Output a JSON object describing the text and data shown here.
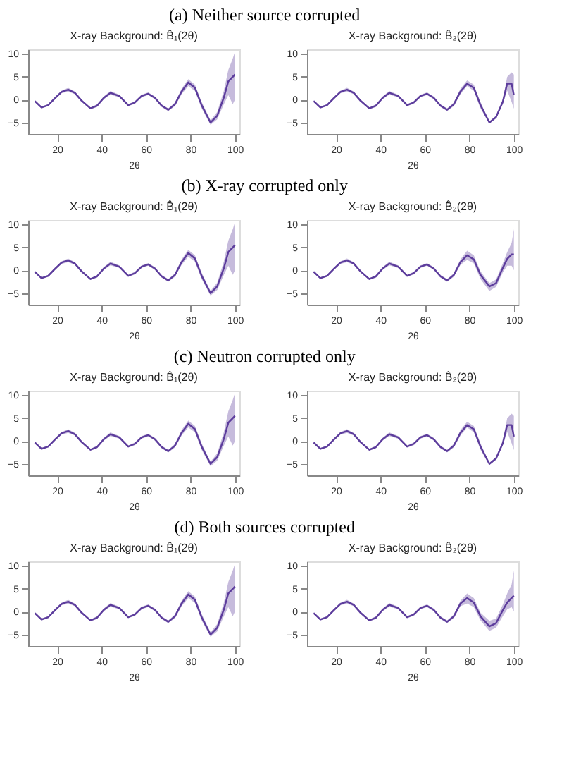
{
  "chart_data": [
    {
      "type": "line",
      "annotations": [
        "(a) Neither source corrupted"
      ],
      "title": "X-ray Background: B̂₁(2θ)",
      "xlabel": "2θ",
      "xlim": [
        7,
        102
      ],
      "xticks": [
        20,
        40,
        60,
        80,
        100
      ],
      "ylim": [
        -7.5,
        11
      ],
      "yticks": [
        -5,
        0,
        5,
        10
      ],
      "grid": false,
      "x": [
        10,
        13,
        16,
        19,
        22,
        25,
        28,
        31,
        35,
        38,
        41,
        44,
        48,
        52,
        55,
        58,
        61,
        64,
        67,
        70,
        73,
        76,
        79,
        82,
        85,
        89,
        92,
        95,
        97,
        99,
        100
      ],
      "series": [
        {
          "color": "#5c3c9c",
          "values": [
            -0.3,
            -1.7,
            -1.2,
            0.3,
            1.7,
            2.2,
            1.5,
            -0.2,
            -1.9,
            -1.3,
            0.4,
            1.5,
            0.8,
            -1.2,
            -0.6,
            0.8,
            1.3,
            0.4,
            -1.3,
            -2.2,
            -1.0,
            1.8,
            3.8,
            2.6,
            -1.2,
            -5.0,
            -3.5,
            0.5,
            4.0,
            5.0,
            5.5
          ],
          "lower": [
            -0.5,
            -1.9,
            -1.4,
            0.0,
            1.4,
            1.8,
            1.2,
            -0.5,
            -2.1,
            -1.6,
            0.1,
            1.1,
            0.5,
            -1.4,
            -0.9,
            0.5,
            1.0,
            0.1,
            -1.6,
            -2.5,
            -1.4,
            1.2,
            3.0,
            1.9,
            -1.9,
            -5.5,
            -4.3,
            -1.0,
            1.0,
            -1.0,
            0.0
          ],
          "upper": [
            -0.1,
            -1.5,
            -1.0,
            0.6,
            2.0,
            2.6,
            1.8,
            0.1,
            -1.7,
            -1.0,
            0.7,
            1.9,
            1.1,
            -1.0,
            -0.3,
            1.1,
            1.6,
            0.7,
            -1.0,
            -1.9,
            -0.6,
            2.4,
            4.5,
            3.3,
            -0.5,
            -4.5,
            -2.7,
            2.0,
            6.5,
            9.0,
            10.5
          ]
        }
      ]
    },
    {
      "type": "line",
      "title": "X-ray Background: B̂₂(2θ)",
      "xlabel": "2θ",
      "xlim": [
        7,
        102
      ],
      "xticks": [
        20,
        40,
        60,
        80,
        100
      ],
      "ylim": [
        -7.5,
        11
      ],
      "yticks": [
        -5,
        0,
        5,
        10
      ],
      "grid": false,
      "x": [
        10,
        13,
        16,
        19,
        22,
        25,
        28,
        31,
        35,
        38,
        41,
        44,
        48,
        52,
        55,
        58,
        61,
        64,
        67,
        70,
        73,
        76,
        79,
        82,
        85,
        89,
        92,
        95,
        97,
        99,
        100
      ],
      "series": [
        {
          "color": "#5c3c9c",
          "values": [
            -0.3,
            -1.7,
            -1.2,
            0.3,
            1.7,
            2.2,
            1.5,
            -0.2,
            -1.9,
            -1.3,
            0.4,
            1.5,
            0.8,
            -1.2,
            -0.6,
            0.8,
            1.3,
            0.4,
            -1.3,
            -2.2,
            -1.0,
            1.8,
            3.5,
            2.6,
            -1.2,
            -5.0,
            -3.8,
            -0.5,
            3.5,
            3.5,
            1.0
          ],
          "lower": [
            -0.5,
            -1.9,
            -1.4,
            0.0,
            1.4,
            1.8,
            1.2,
            -0.5,
            -2.1,
            -1.6,
            0.1,
            1.1,
            0.5,
            -1.4,
            -0.9,
            0.5,
            1.0,
            0.1,
            -1.6,
            -2.5,
            -1.4,
            1.2,
            3.0,
            1.9,
            -1.9,
            -5.2,
            -4.1,
            -1.0,
            2.0,
            -0.5,
            -2.0
          ],
          "upper": [
            -0.1,
            -1.5,
            -1.0,
            0.6,
            2.0,
            2.6,
            1.8,
            0.1,
            -1.7,
            -1.0,
            0.7,
            1.9,
            1.1,
            -1.0,
            -0.3,
            1.1,
            1.6,
            0.7,
            -1.0,
            -1.9,
            -0.6,
            2.4,
            4.2,
            3.3,
            -0.5,
            -4.8,
            -3.5,
            0.0,
            5.0,
            6.0,
            5.5
          ]
        }
      ]
    },
    {
      "type": "line",
      "annotations": [
        "(b) X-ray corrupted only"
      ],
      "title": "X-ray Background: B̂₁(2θ)",
      "xlabel": "2θ",
      "xlim": [
        7,
        102
      ],
      "xticks": [
        20,
        40,
        60,
        80,
        100
      ],
      "ylim": [
        -7.5,
        11
      ],
      "yticks": [
        -5,
        0,
        5,
        10
      ],
      "grid": false,
      "x": [
        10,
        13,
        16,
        19,
        22,
        25,
        28,
        31,
        35,
        38,
        41,
        44,
        48,
        52,
        55,
        58,
        61,
        64,
        67,
        70,
        73,
        76,
        79,
        82,
        85,
        89,
        92,
        95,
        97,
        99,
        100
      ],
      "series": [
        {
          "color": "#5c3c9c",
          "values": [
            -0.3,
            -1.7,
            -1.2,
            0.3,
            1.7,
            2.2,
            1.5,
            -0.2,
            -1.9,
            -1.3,
            0.4,
            1.5,
            0.8,
            -1.2,
            -0.6,
            0.8,
            1.3,
            0.4,
            -1.3,
            -2.2,
            -1.0,
            1.8,
            3.8,
            2.6,
            -1.2,
            -5.0,
            -3.5,
            0.5,
            4.0,
            5.0,
            5.5
          ],
          "lower": [
            -0.5,
            -1.9,
            -1.4,
            0.0,
            1.4,
            1.8,
            1.2,
            -0.5,
            -2.1,
            -1.6,
            0.1,
            1.1,
            0.5,
            -1.4,
            -0.9,
            0.5,
            1.0,
            0.1,
            -1.6,
            -2.5,
            -1.4,
            1.2,
            3.0,
            1.9,
            -1.9,
            -5.5,
            -4.3,
            -1.0,
            1.0,
            -1.0,
            0.0
          ],
          "upper": [
            -0.1,
            -1.5,
            -1.0,
            0.6,
            2.0,
            2.6,
            1.8,
            0.1,
            -1.7,
            -1.0,
            0.7,
            1.9,
            1.1,
            -1.0,
            -0.3,
            1.1,
            1.6,
            0.7,
            -1.0,
            -1.9,
            -0.6,
            2.4,
            4.5,
            3.3,
            -0.5,
            -4.5,
            -2.7,
            2.0,
            6.5,
            9.0,
            10.5
          ]
        }
      ]
    },
    {
      "type": "line",
      "title": "X-ray Background: B̂₂(2θ)",
      "xlabel": "2θ",
      "xlim": [
        7,
        102
      ],
      "xticks": [
        20,
        40,
        60,
        80,
        100
      ],
      "ylim": [
        -7.5,
        11
      ],
      "yticks": [
        -5,
        0,
        5,
        10
      ],
      "grid": false,
      "x": [
        10,
        13,
        16,
        19,
        22,
        25,
        28,
        31,
        35,
        38,
        41,
        44,
        48,
        52,
        55,
        58,
        61,
        64,
        67,
        70,
        73,
        76,
        79,
        82,
        85,
        89,
        92,
        95,
        97,
        99,
        100
      ],
      "series": [
        {
          "color": "#5c3c9c",
          "values": [
            -0.3,
            -1.7,
            -1.2,
            0.3,
            1.7,
            2.2,
            1.5,
            -0.2,
            -1.9,
            -1.3,
            0.4,
            1.5,
            0.8,
            -1.2,
            -0.6,
            0.8,
            1.3,
            0.4,
            -1.3,
            -2.2,
            -1.0,
            1.8,
            3.3,
            2.4,
            -1.0,
            -3.5,
            -2.8,
            0.5,
            2.5,
            3.5,
            3.5
          ],
          "lower": [
            -0.5,
            -1.9,
            -1.4,
            0.0,
            1.4,
            1.8,
            1.2,
            -0.5,
            -2.1,
            -1.6,
            0.1,
            1.1,
            0.5,
            -1.4,
            -0.9,
            0.5,
            1.0,
            0.1,
            -1.6,
            -2.5,
            -1.4,
            1.2,
            2.3,
            1.5,
            -1.9,
            -4.5,
            -3.6,
            -0.5,
            1.0,
            1.0,
            0.0
          ],
          "upper": [
            -0.1,
            -1.5,
            -1.0,
            0.6,
            2.0,
            2.6,
            1.8,
            0.1,
            -1.7,
            -1.0,
            0.7,
            1.9,
            1.1,
            -1.0,
            -0.3,
            1.1,
            1.6,
            0.7,
            -1.0,
            -1.9,
            -0.6,
            2.4,
            4.3,
            3.3,
            -0.2,
            -2.8,
            -2.0,
            1.5,
            4.0,
            6.0,
            9.0
          ]
        }
      ]
    },
    {
      "type": "line",
      "annotations": [
        "(c) Neutron corrupted only"
      ],
      "title": "X-ray Background: B̂₁(2θ)",
      "xlabel": "2θ",
      "xlim": [
        7,
        102
      ],
      "xticks": [
        20,
        40,
        60,
        80,
        100
      ],
      "ylim": [
        -7.5,
        11
      ],
      "yticks": [
        -5,
        0,
        5,
        10
      ],
      "grid": false,
      "x": [
        10,
        13,
        16,
        19,
        22,
        25,
        28,
        31,
        35,
        38,
        41,
        44,
        48,
        52,
        55,
        58,
        61,
        64,
        67,
        70,
        73,
        76,
        79,
        82,
        85,
        89,
        92,
        95,
        97,
        99,
        100
      ],
      "series": [
        {
          "color": "#5c3c9c",
          "values": [
            -0.3,
            -1.7,
            -1.2,
            0.3,
            1.7,
            2.2,
            1.5,
            -0.2,
            -1.9,
            -1.3,
            0.4,
            1.5,
            0.8,
            -1.2,
            -0.6,
            0.8,
            1.3,
            0.4,
            -1.3,
            -2.2,
            -1.0,
            1.8,
            3.8,
            2.6,
            -1.2,
            -5.0,
            -3.5,
            0.5,
            4.0,
            5.0,
            5.5
          ],
          "lower": [
            -0.5,
            -1.9,
            -1.4,
            0.0,
            1.4,
            1.8,
            1.2,
            -0.5,
            -2.1,
            -1.6,
            0.1,
            1.1,
            0.5,
            -1.4,
            -0.9,
            0.5,
            1.0,
            0.1,
            -1.6,
            -2.5,
            -1.4,
            1.2,
            3.0,
            1.9,
            -1.9,
            -5.5,
            -4.3,
            -1.0,
            1.0,
            -1.0,
            0.0
          ],
          "upper": [
            -0.1,
            -1.5,
            -1.0,
            0.6,
            2.0,
            2.6,
            1.8,
            0.1,
            -1.7,
            -1.0,
            0.7,
            1.9,
            1.1,
            -1.0,
            -0.3,
            1.1,
            1.6,
            0.7,
            -1.0,
            -1.9,
            -0.6,
            2.4,
            4.5,
            3.3,
            -0.5,
            -4.5,
            -2.7,
            2.0,
            6.5,
            9.0,
            10.5
          ]
        }
      ]
    },
    {
      "type": "line",
      "title": "X-ray Background: B̂₂(2θ)",
      "xlabel": "2θ",
      "xlim": [
        7,
        102
      ],
      "xticks": [
        20,
        40,
        60,
        80,
        100
      ],
      "ylim": [
        -7.5,
        11
      ],
      "yticks": [
        -5,
        0,
        5,
        10
      ],
      "grid": false,
      "x": [
        10,
        13,
        16,
        19,
        22,
        25,
        28,
        31,
        35,
        38,
        41,
        44,
        48,
        52,
        55,
        58,
        61,
        64,
        67,
        70,
        73,
        76,
        79,
        82,
        85,
        89,
        92,
        95,
        97,
        99,
        100
      ],
      "series": [
        {
          "color": "#5c3c9c",
          "values": [
            -0.3,
            -1.7,
            -1.2,
            0.3,
            1.7,
            2.2,
            1.5,
            -0.2,
            -1.9,
            -1.3,
            0.4,
            1.5,
            0.8,
            -1.2,
            -0.6,
            0.8,
            1.3,
            0.4,
            -1.3,
            -2.2,
            -1.0,
            1.8,
            3.5,
            2.6,
            -1.2,
            -5.0,
            -3.8,
            -0.5,
            3.5,
            3.5,
            1.0
          ],
          "lower": [
            -0.5,
            -1.9,
            -1.4,
            0.0,
            1.4,
            1.8,
            1.2,
            -0.5,
            -2.1,
            -1.6,
            0.1,
            1.1,
            0.5,
            -1.4,
            -0.9,
            0.5,
            1.0,
            0.1,
            -1.6,
            -2.5,
            -1.4,
            1.2,
            3.0,
            1.9,
            -1.9,
            -5.2,
            -4.1,
            -1.0,
            2.0,
            -0.5,
            -2.0
          ],
          "upper": [
            -0.1,
            -1.5,
            -1.0,
            0.6,
            2.0,
            2.6,
            1.8,
            0.1,
            -1.7,
            -1.0,
            0.7,
            1.9,
            1.1,
            -1.0,
            -0.3,
            1.1,
            1.6,
            0.7,
            -1.0,
            -1.9,
            -0.6,
            2.4,
            4.2,
            3.3,
            -0.5,
            -4.8,
            -3.5,
            0.0,
            5.0,
            6.0,
            5.5
          ]
        }
      ]
    },
    {
      "type": "line",
      "annotations": [
        "(d) Both sources corrupted"
      ],
      "title": "X-ray Background: B̂₁(2θ)",
      "xlabel": "2θ",
      "xlim": [
        7,
        102
      ],
      "xticks": [
        20,
        40,
        60,
        80,
        100
      ],
      "ylim": [
        -7.5,
        11
      ],
      "yticks": [
        -5,
        0,
        5,
        10
      ],
      "grid": false,
      "x": [
        10,
        13,
        16,
        19,
        22,
        25,
        28,
        31,
        35,
        38,
        41,
        44,
        48,
        52,
        55,
        58,
        61,
        64,
        67,
        70,
        73,
        76,
        79,
        82,
        85,
        89,
        92,
        95,
        97,
        99,
        100
      ],
      "series": [
        {
          "color": "#5c3c9c",
          "values": [
            -0.3,
            -1.7,
            -1.2,
            0.3,
            1.7,
            2.2,
            1.5,
            -0.2,
            -1.9,
            -1.3,
            0.4,
            1.5,
            0.8,
            -1.2,
            -0.6,
            0.8,
            1.3,
            0.4,
            -1.3,
            -2.2,
            -1.0,
            1.8,
            3.8,
            2.6,
            -1.2,
            -5.0,
            -3.5,
            0.5,
            4.0,
            5.0,
            5.5
          ],
          "lower": [
            -0.5,
            -1.9,
            -1.4,
            0.0,
            1.4,
            1.8,
            1.2,
            -0.5,
            -2.1,
            -1.6,
            0.1,
            1.1,
            0.5,
            -1.4,
            -0.9,
            0.5,
            1.0,
            0.1,
            -1.6,
            -2.5,
            -1.4,
            1.2,
            3.0,
            1.9,
            -1.9,
            -5.5,
            -4.3,
            -1.0,
            1.0,
            -1.0,
            0.0
          ],
          "upper": [
            -0.1,
            -1.5,
            -1.0,
            0.6,
            2.0,
            2.6,
            1.8,
            0.1,
            -1.7,
            -1.0,
            0.7,
            1.9,
            1.1,
            -1.0,
            -0.3,
            1.1,
            1.6,
            0.7,
            -1.0,
            -1.9,
            -0.6,
            2.4,
            4.5,
            3.3,
            -0.5,
            -4.5,
            -2.7,
            2.0,
            6.5,
            9.0,
            10.5
          ]
        }
      ]
    },
    {
      "type": "line",
      "title": "X-ray Background: B̂₂(2θ)",
      "xlabel": "2θ",
      "xlim": [
        7,
        102
      ],
      "xticks": [
        20,
        40,
        60,
        80,
        100
      ],
      "ylim": [
        -7.5,
        11
      ],
      "yticks": [
        -5,
        0,
        5,
        10
      ],
      "grid": false,
      "x": [
        10,
        13,
        16,
        19,
        22,
        25,
        28,
        31,
        35,
        38,
        41,
        44,
        48,
        52,
        55,
        58,
        61,
        64,
        67,
        70,
        73,
        76,
        79,
        82,
        85,
        89,
        92,
        95,
        97,
        99,
        100
      ],
      "series": [
        {
          "color": "#5c3c9c",
          "values": [
            -0.3,
            -1.7,
            -1.2,
            0.3,
            1.7,
            2.2,
            1.5,
            -0.2,
            -1.9,
            -1.3,
            0.4,
            1.5,
            0.8,
            -1.2,
            -0.6,
            0.8,
            1.3,
            0.4,
            -1.3,
            -2.2,
            -1.0,
            1.8,
            3.0,
            2.0,
            -1.0,
            -3.2,
            -2.5,
            0.3,
            2.0,
            3.0,
            3.5
          ],
          "lower": [
            -0.5,
            -1.9,
            -1.4,
            0.0,
            1.4,
            1.8,
            1.2,
            -0.5,
            -2.1,
            -1.6,
            0.1,
            1.1,
            0.5,
            -1.4,
            -0.9,
            0.5,
            1.0,
            0.1,
            -1.6,
            -2.5,
            -1.4,
            1.2,
            1.8,
            1.0,
            -1.9,
            -4.2,
            -3.5,
            -1.0,
            0.5,
            1.0,
            0.0
          ],
          "upper": [
            -0.1,
            -1.5,
            -1.0,
            0.6,
            2.0,
            2.6,
            1.8,
            0.1,
            -1.7,
            -1.0,
            0.7,
            1.9,
            1.1,
            -1.0,
            -0.3,
            1.1,
            1.6,
            0.7,
            -1.0,
            -1.9,
            -0.6,
            2.4,
            4.0,
            3.0,
            -0.2,
            -2.0,
            -1.5,
            1.5,
            4.0,
            6.0,
            9.0
          ]
        }
      ]
    }
  ]
}
